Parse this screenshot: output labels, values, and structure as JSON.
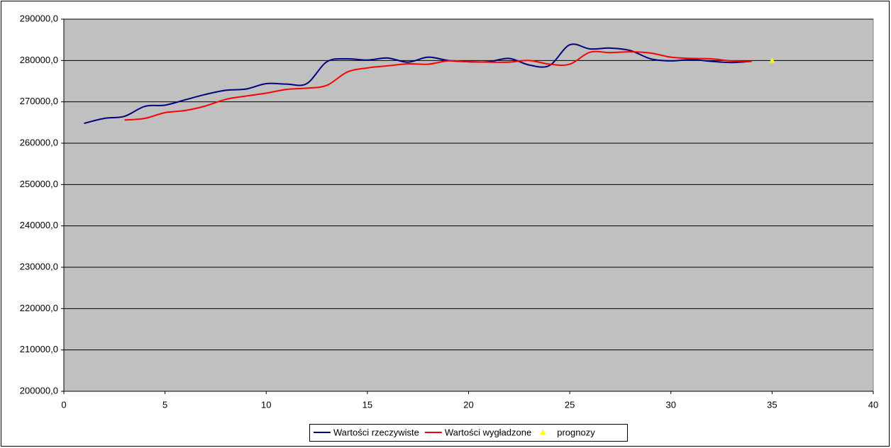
{
  "chart_data": {
    "type": "line",
    "x": [
      1,
      2,
      3,
      4,
      5,
      6,
      7,
      8,
      9,
      10,
      11,
      12,
      13,
      14,
      15,
      16,
      17,
      18,
      19,
      20,
      21,
      22,
      23,
      24,
      25,
      26,
      27,
      28,
      29,
      30,
      31,
      32,
      33,
      34,
      35
    ],
    "series": [
      {
        "name": "Wartości rzeczywiste",
        "color": "#000080",
        "style": "line",
        "values": [
          264800,
          266000,
          266500,
          268900,
          269200,
          270500,
          271800,
          272800,
          273100,
          274400,
          274300,
          274400,
          279700,
          280400,
          280100,
          280600,
          279600,
          280800,
          280000,
          279700,
          279700,
          280500,
          278900,
          278800,
          283800,
          282800,
          283000,
          282400,
          280400,
          279900,
          280200,
          279800,
          279500,
          279800,
          null
        ]
      },
      {
        "name": "Wartości wygładzone",
        "color": "#ff0000",
        "style": "line",
        "values": [
          null,
          null,
          265600,
          266000,
          267400,
          267900,
          269000,
          270600,
          271400,
          272100,
          273000,
          273300,
          274000,
          277200,
          278200,
          278700,
          279200,
          279100,
          279900,
          279700,
          279600,
          279600,
          280000,
          279100,
          279100,
          282000,
          281900,
          282100,
          281800,
          280800,
          280500,
          280400,
          279900,
          279800,
          null
        ]
      },
      {
        "name": "prognozy",
        "color": "#ffff00",
        "style": "marker",
        "values": [
          null,
          null,
          null,
          null,
          null,
          null,
          null,
          null,
          null,
          null,
          null,
          null,
          null,
          null,
          null,
          null,
          null,
          null,
          null,
          null,
          null,
          null,
          null,
          null,
          null,
          null,
          null,
          null,
          null,
          null,
          null,
          null,
          null,
          null,
          280000
        ]
      }
    ],
    "xlim": [
      0,
      40
    ],
    "xticks": [
      0,
      5,
      10,
      15,
      20,
      25,
      30,
      35,
      40
    ],
    "ylim": [
      200000,
      290000
    ],
    "yticks": [
      {
        "value": 200000,
        "label": "200000,0"
      },
      {
        "value": 210000,
        "label": "210000,0"
      },
      {
        "value": 220000,
        "label": "220000,0"
      },
      {
        "value": 230000,
        "label": "230000,0"
      },
      {
        "value": 240000,
        "label": "240000,0"
      },
      {
        "value": 250000,
        "label": "250000,0"
      },
      {
        "value": 260000,
        "label": "260000,0"
      },
      {
        "value": 270000,
        "label": "270000,0"
      },
      {
        "value": 280000,
        "label": "280000,0"
      },
      {
        "value": 290000,
        "label": "290000,0"
      }
    ],
    "grid": true,
    "legend": "bottom"
  }
}
